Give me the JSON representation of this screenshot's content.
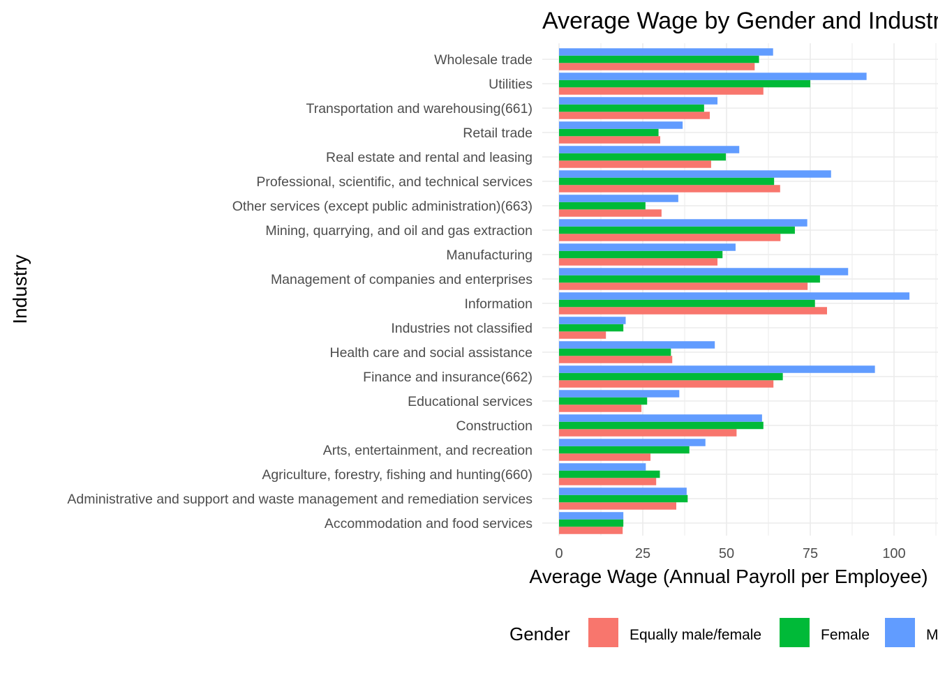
{
  "chart_data": {
    "type": "bar",
    "orientation": "horizontal",
    "title": "Average Wage by Gender and Industry",
    "xlabel": "Average Wage (Annual Payroll per Employee)",
    "ylabel": "Industry",
    "xlim": [
      0,
      105
    ],
    "x_ticks": [
      0,
      25,
      50,
      75,
      100
    ],
    "grid": true,
    "legend_title": "Gender",
    "legend_position": "bottom",
    "categories": [
      "Accommodation and food services",
      "Administrative and support and waste management and remediation services",
      "Agriculture, forestry, fishing and hunting(660)",
      "Arts, entertainment, and recreation",
      "Construction",
      "Educational services",
      "Finance and insurance(662)",
      "Health care and social assistance",
      "Industries not classified",
      "Information",
      "Management of companies and enterprises",
      "Manufacturing",
      "Mining, quarrying, and oil and gas extraction",
      "Other services (except public administration)(663)",
      "Professional, scientific, and technical services",
      "Real estate and rental and leasing",
      "Retail trade",
      "Transportation and warehousing(661)",
      "Utilities",
      "Wholesale trade"
    ],
    "series": [
      {
        "name": "Equally male/female",
        "color": "#F8766D",
        "values": [
          19.0,
          35.0,
          29.0,
          27.3,
          53.0,
          24.6,
          64.0,
          33.8,
          14.0,
          80.0,
          74.2,
          47.3,
          66.1,
          30.6,
          66.0,
          45.4,
          30.2,
          45.0,
          61.0,
          58.4
        ]
      },
      {
        "name": "Female",
        "color": "#00BA38",
        "values": [
          19.2,
          38.4,
          30.1,
          38.9,
          61.0,
          26.3,
          66.8,
          33.4,
          19.2,
          76.4,
          77.9,
          48.8,
          70.4,
          25.8,
          64.2,
          49.8,
          29.7,
          43.3,
          75.0,
          59.7
        ]
      },
      {
        "name": "Male",
        "color": "#619CFF",
        "values": [
          19.2,
          38.1,
          25.9,
          43.7,
          60.6,
          35.9,
          94.3,
          46.5,
          19.9,
          104.6,
          86.3,
          52.7,
          74.1,
          35.6,
          81.2,
          53.8,
          36.9,
          47.3,
          91.8,
          63.9
        ]
      }
    ]
  }
}
